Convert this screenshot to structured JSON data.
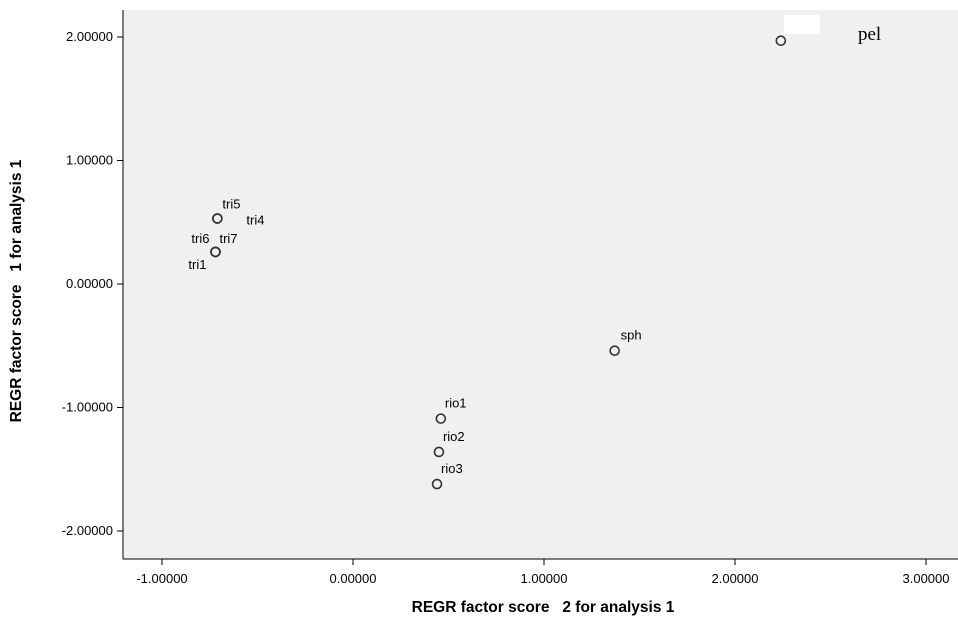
{
  "chart_data": {
    "type": "scatter",
    "xlabel": "REGR factor score   2 for analysis 1",
    "ylabel": "REGR factor score   1 for analysis 1",
    "xlim": [
      -1.2,
      3.2
    ],
    "ylim": [
      -2.2,
      2.2
    ],
    "x_ticks": [
      -1,
      0,
      1,
      2,
      3
    ],
    "x_tick_labels": [
      "-1.00000",
      "0.00000",
      "1.00000",
      "2.00000",
      "3.00000"
    ],
    "y_ticks": [
      2,
      1,
      0,
      -1,
      -2
    ],
    "y_tick_labels": [
      "2.00000",
      "1.00000",
      "0.00000",
      "-1.00000",
      "-2.00000"
    ],
    "grid": false,
    "plot_background": "#f0f0f0",
    "marker_color": "#333333",
    "points": [
      {
        "label": "tri5",
        "x": -0.71,
        "y": 0.53
      },
      {
        "label": "tri4",
        "x": -0.71,
        "y": 0.53
      },
      {
        "label": "tri6",
        "x": -0.72,
        "y": 0.26
      },
      {
        "label": "tri7",
        "x": -0.72,
        "y": 0.26
      },
      {
        "label": "tri1",
        "x": -0.72,
        "y": 0.26
      },
      {
        "label": "sph",
        "x": 1.37,
        "y": -0.54
      },
      {
        "label": "rio1",
        "x": 0.46,
        "y": -1.09
      },
      {
        "label": "rio2",
        "x": 0.45,
        "y": -1.36
      },
      {
        "label": "rio3",
        "x": 0.44,
        "y": -1.62
      },
      {
        "label": "",
        "x": 2.24,
        "y": 1.97
      }
    ],
    "annotation": "pel"
  }
}
